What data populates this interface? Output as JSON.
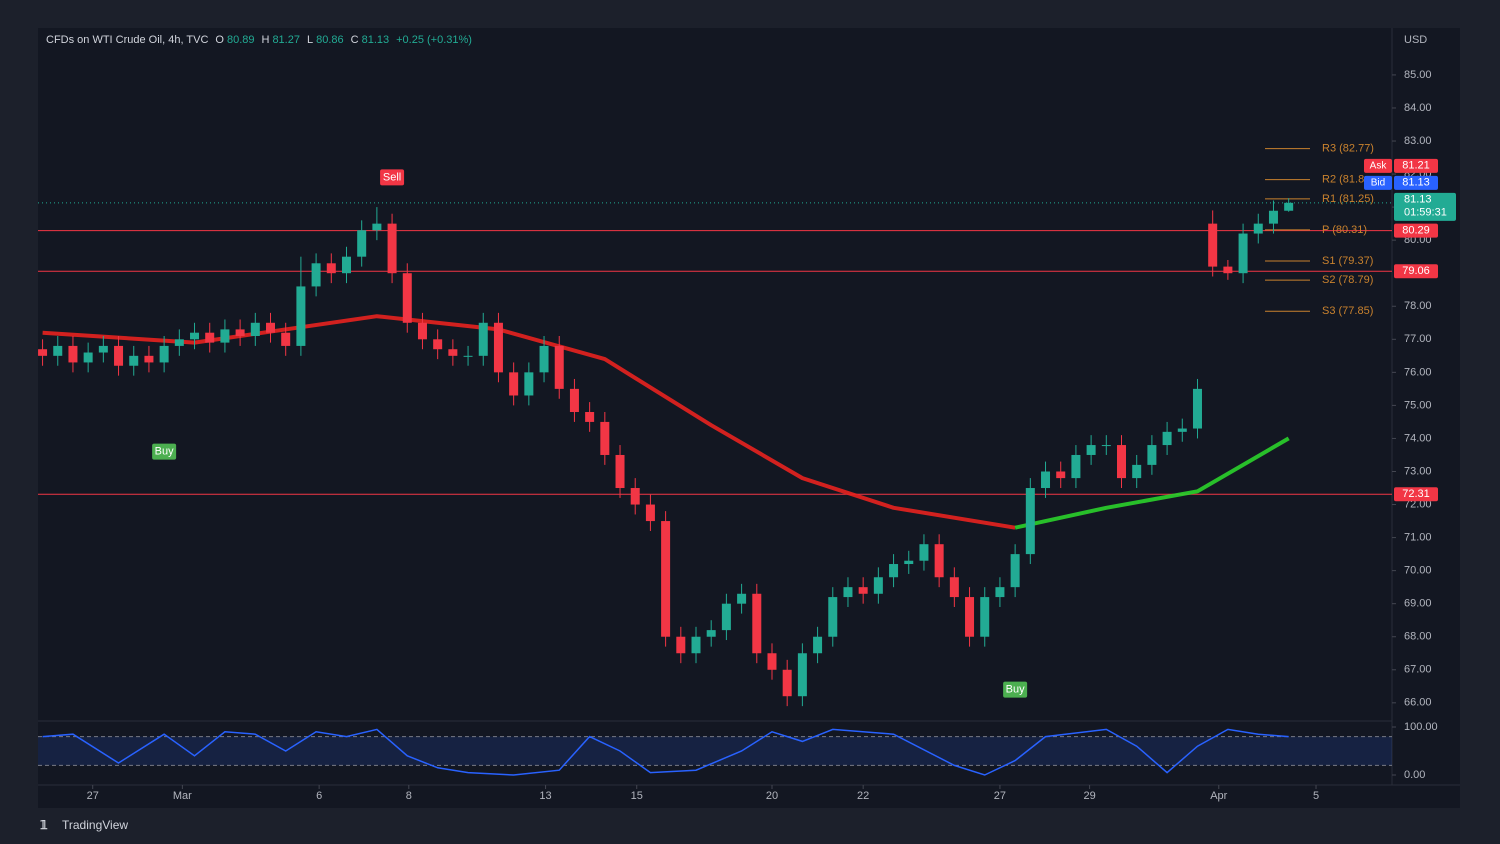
{
  "header": {
    "symbol": "CFDs on WTI Crude Oil, 4h, TVC",
    "open_label": "O",
    "open": 80.89,
    "high_label": "H",
    "high": 81.27,
    "low_label": "L",
    "low": 80.86,
    "close_label": "C",
    "close": 81.13,
    "change": "+0.25 (+0.31%)"
  },
  "brand": "TradingView",
  "chart_data": {
    "type": "candlestick",
    "currency": "USD",
    "up_color": "#22ab94",
    "down_color": "#f23645",
    "open": [
      76.7,
      76.5,
      76.8,
      76.3,
      76.6,
      76.8,
      76.2,
      76.5,
      76.3,
      76.8,
      77.0,
      77.2,
      76.9,
      77.3,
      77.1,
      77.5,
      77.2,
      76.8,
      78.6,
      79.3,
      79.0,
      79.5,
      80.3,
      80.5,
      79.0,
      77.5,
      77.0,
      76.7,
      76.5,
      76.5,
      77.5,
      76.0,
      75.3,
      76.0,
      76.8,
      75.5,
      74.8,
      74.5,
      73.5,
      72.5,
      72.0,
      71.5,
      68.0,
      67.5,
      68.0,
      68.2,
      69.0,
      69.3,
      67.5,
      67.0,
      66.2,
      67.5,
      68.0,
      69.2,
      69.5,
      69.3,
      69.8,
      70.2,
      70.3,
      70.8,
      69.8,
      69.2,
      68.0,
      69.2,
      69.5,
      70.5,
      72.5,
      73.0,
      72.8,
      73.5,
      73.8,
      73.8,
      72.8,
      73.2,
      73.8,
      74.2,
      74.3,
      80.5,
      79.2,
      79.0,
      80.2,
      80.5,
      80.89
    ],
    "high": [
      77.0,
      77.1,
      77.1,
      76.9,
      77.1,
      77.1,
      76.8,
      76.8,
      77.1,
      77.3,
      77.5,
      77.5,
      77.6,
      77.6,
      77.8,
      77.8,
      77.5,
      79.5,
      79.6,
      79.6,
      79.8,
      80.6,
      81.0,
      80.8,
      79.3,
      77.8,
      77.3,
      77.0,
      76.8,
      77.8,
      77.8,
      76.3,
      76.3,
      77.1,
      77.1,
      75.8,
      75.1,
      74.8,
      73.8,
      72.8,
      72.3,
      71.8,
      68.3,
      68.3,
      68.5,
      69.3,
      69.6,
      69.6,
      67.8,
      67.3,
      67.8,
      68.3,
      69.5,
      69.8,
      69.8,
      70.1,
      70.5,
      70.6,
      71.1,
      71.1,
      70.1,
      69.5,
      69.5,
      69.8,
      70.8,
      72.8,
      73.3,
      73.3,
      73.8,
      74.1,
      74.1,
      74.1,
      73.5,
      74.1,
      74.5,
      74.6,
      75.8,
      80.9,
      79.4,
      80.5,
      80.8,
      81.2,
      81.27
    ],
    "low": [
      76.2,
      76.2,
      76.0,
      76.0,
      76.3,
      75.9,
      75.9,
      76.0,
      76.0,
      76.5,
      76.7,
      76.6,
      76.6,
      76.8,
      76.8,
      76.9,
      76.5,
      76.5,
      78.3,
      78.7,
      78.7,
      79.2,
      80.0,
      78.7,
      77.2,
      76.7,
      76.4,
      76.2,
      76.2,
      76.2,
      75.7,
      75.0,
      75.0,
      75.7,
      75.2,
      74.5,
      74.2,
      73.2,
      72.2,
      71.7,
      71.2,
      67.7,
      67.2,
      67.2,
      67.7,
      67.9,
      68.7,
      67.2,
      66.7,
      65.9,
      65.9,
      67.2,
      67.7,
      68.9,
      69.0,
      69.0,
      69.5,
      69.9,
      70.0,
      69.5,
      68.9,
      67.7,
      67.7,
      68.9,
      69.2,
      70.2,
      72.2,
      72.5,
      72.5,
      73.2,
      73.5,
      72.5,
      72.5,
      72.9,
      73.5,
      73.9,
      74.0,
      78.9,
      78.8,
      78.7,
      79.9,
      80.2,
      80.86
    ],
    "close": [
      76.5,
      76.8,
      76.3,
      76.6,
      76.8,
      76.2,
      76.5,
      76.3,
      76.8,
      77.0,
      77.2,
      76.9,
      77.3,
      77.1,
      77.5,
      77.2,
      76.8,
      78.6,
      79.3,
      79.0,
      79.5,
      80.3,
      80.5,
      79.0,
      77.5,
      77.0,
      76.7,
      76.5,
      76.5,
      77.5,
      76.0,
      75.3,
      76.0,
      76.8,
      75.5,
      74.8,
      74.5,
      73.5,
      72.5,
      72.0,
      71.5,
      68.0,
      67.5,
      68.0,
      68.2,
      69.0,
      69.3,
      67.5,
      67.0,
      66.2,
      67.5,
      68.0,
      69.2,
      69.5,
      69.3,
      69.8,
      70.2,
      70.3,
      70.8,
      69.8,
      69.2,
      68.0,
      69.2,
      69.5,
      70.5,
      72.5,
      73.0,
      72.8,
      73.5,
      73.8,
      73.8,
      72.8,
      73.2,
      73.8,
      74.2,
      74.3,
      75.5,
      79.2,
      79.0,
      80.2,
      80.5,
      80.89,
      81.13
    ],
    "xlim": [
      -0.3,
      88.8
    ],
    "xticks": [
      {
        "value": 3.3,
        "label": "27"
      },
      {
        "value": 9.2,
        "label": "Mar"
      },
      {
        "value": 18.2,
        "label": "6"
      },
      {
        "value": 24.1,
        "label": "8"
      },
      {
        "value": 33.1,
        "label": "13"
      },
      {
        "value": 39.1,
        "label": "15"
      },
      {
        "value": 48.0,
        "label": "20"
      },
      {
        "value": 54.0,
        "label": "22"
      },
      {
        "value": 63.0,
        "label": "27"
      },
      {
        "value": 68.9,
        "label": "29"
      },
      {
        "value": 77.4,
        "label": "Apr"
      },
      {
        "value": 83.8,
        "label": "5"
      }
    ],
    "ylim": [
      65.45,
      86.42
    ],
    "yticks": [
      {
        "value": 85,
        "label": "85.00"
      },
      {
        "value": 84,
        "label": "84.00"
      },
      {
        "value": 83,
        "label": "83.00"
      },
      {
        "value": 82,
        "label": "82.00"
      },
      {
        "value": 81,
        "label": "81.00"
      },
      {
        "value": 80,
        "label": "80.00"
      },
      {
        "value": 78,
        "label": "78.00"
      },
      {
        "value": 77,
        "label": "77.00"
      },
      {
        "value": 76,
        "label": "76.00"
      },
      {
        "value": 75,
        "label": "75.00"
      },
      {
        "value": 74,
        "label": "74.00"
      },
      {
        "value": 73,
        "label": "73.00"
      },
      {
        "value": 72,
        "label": "72.00"
      },
      {
        "value": 71,
        "label": "71.00"
      },
      {
        "value": 70,
        "label": "70.00"
      },
      {
        "value": 69,
        "label": "69.00"
      },
      {
        "value": 68,
        "label": "68.00"
      },
      {
        "value": 67,
        "label": "67.00"
      },
      {
        "value": 66,
        "label": "66.00"
      }
    ],
    "overlays": [
      {
        "color": "#e8221f",
        "x": [
          0,
          10,
          22,
          30,
          37,
          44,
          50,
          56,
          64
        ],
        "values": [
          77.2,
          76.9,
          77.7,
          77.3,
          76.4,
          74.4,
          72.8,
          71.9,
          71.3
        ]
      },
      {
        "color": "#2bd12b",
        "x": [
          64,
          70,
          76,
          82
        ],
        "values": [
          71.3,
          71.9,
          72.4,
          74.0
        ]
      }
    ],
    "levels": [
      {
        "value": 80.29,
        "color": "#f23645"
      },
      {
        "value": 79.06,
        "color": "#f23645"
      },
      {
        "value": 72.31,
        "color": "#f23645"
      }
    ],
    "pivots": [
      {
        "label": "R3 (82.77)",
        "value": 82.77
      },
      {
        "label": "R2 (81.8",
        "value": 81.83
      },
      {
        "label": "R1 (81.25)",
        "value": 81.25
      },
      {
        "label": "P (80.31)",
        "value": 80.31
      },
      {
        "label": "S1 (79.37)",
        "value": 79.37
      },
      {
        "label": "S2 (78.79)",
        "value": 78.79
      },
      {
        "label": "S3 (77.85)",
        "value": 77.85
      }
    ],
    "pivot_color": "#c9822e",
    "quotes": [
      {
        "label": "Ask",
        "value": 81.21,
        "color": "#f23645"
      },
      {
        "label": "Bid",
        "value": 81.13,
        "color": "#2962ff"
      }
    ],
    "last": {
      "value": 81.13,
      "countdown": "01:59:31",
      "color": "#22ab94"
    },
    "signals": [
      {
        "label": "Sell",
        "x": 23,
        "value": 81.9,
        "color": "#f23645"
      },
      {
        "label": "Buy",
        "x": 8,
        "value": 73.6,
        "color": "#4caf50"
      },
      {
        "label": "Buy",
        "x": 64,
        "value": 66.4,
        "color": "#4caf50"
      }
    ],
    "oscillator": {
      "ylim": [
        -14.6,
        110.4
      ],
      "yticks": [
        {
          "value": 100,
          "label": "100.00"
        },
        {
          "value": 0,
          "label": "0.00"
        }
      ],
      "bands": [
        80,
        20
      ],
      "color": "#2962ff",
      "x": [
        0,
        2,
        5,
        8,
        10,
        12,
        14,
        16,
        18,
        20,
        22,
        24,
        26,
        28,
        31,
        34,
        36,
        38,
        40,
        43,
        46,
        48,
        50,
        52,
        56,
        60,
        62,
        64,
        66,
        70,
        72,
        74,
        76,
        78,
        80,
        82
      ],
      "values": [
        80,
        85,
        25,
        85,
        40,
        90,
        85,
        50,
        90,
        80,
        95,
        40,
        15,
        5,
        0,
        10,
        80,
        50,
        5,
        10,
        50,
        90,
        70,
        95,
        85,
        20,
        0,
        30,
        80,
        95,
        60,
        5,
        60,
        95,
        85,
        80
      ]
    }
  }
}
